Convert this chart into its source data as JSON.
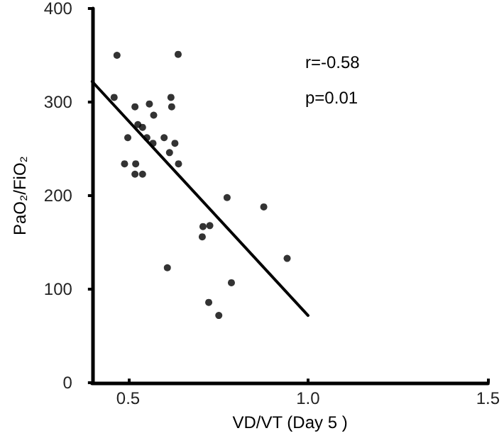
{
  "chart_data": {
    "type": "scatter",
    "xlabel": "VD/VT (Day 5 )",
    "ylabel": "PaO₂/FiO₂",
    "xlim": [
      0.4,
      1.5
    ],
    "xticks": [
      0.5,
      {
        "value": 1,
        "label": "1.0"
      },
      1.5
    ],
    "ylim": [
      0,
      400
    ],
    "yticks": [
      0,
      100,
      200,
      300,
      400
    ],
    "grid": false,
    "marker": "circle",
    "annotations": [
      "r=-0.58",
      "p=0.01"
    ],
    "series": [
      {
        "color": "#000000",
        "x": [
          0.469,
          0.639,
          0.461,
          0.519,
          0.559,
          0.571,
          0.619,
          0.621,
          0.527,
          0.54,
          0.499,
          0.552,
          0.569,
          0.6,
          0.63,
          0.615,
          0.64,
          0.49,
          0.521,
          0.519,
          0.54,
          0.775,
          0.877,
          0.708,
          0.727,
          0.706,
          0.942,
          0.609,
          0.787,
          0.724,
          0.752
        ],
        "values": [
          350,
          351,
          305,
          295,
          298,
          286,
          305,
          295,
          276,
          273,
          262,
          262,
          256,
          262,
          256,
          246,
          234,
          234,
          234,
          223,
          223,
          198,
          188,
          167,
          168,
          156,
          133,
          123,
          107,
          86,
          72
        ]
      },
      {
        "type": "line",
        "color": "#000000",
        "marker": "none",
        "line_style": "solid",
        "x": [
          0.4,
          1.0
        ],
        "values": [
          322,
          72
        ]
      }
    ]
  }
}
